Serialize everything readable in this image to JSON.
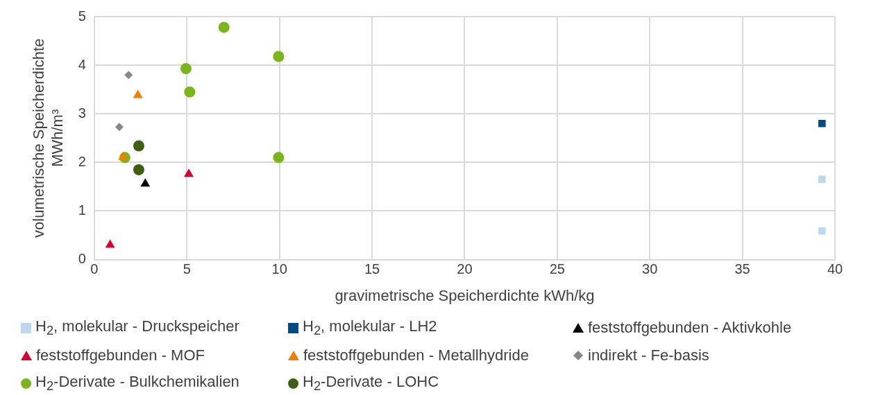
{
  "chart_data": {
    "type": "scatter",
    "xlabel": "gravimetrische Speicherdichte kWh/kg",
    "ylabel": "volumetrische Speicherdichte MWh/m³",
    "xlim": [
      0,
      40
    ],
    "xticks": [
      0,
      5,
      10,
      15,
      20,
      25,
      30,
      35,
      40
    ],
    "ylim": [
      0,
      5
    ],
    "yticks": [
      0,
      1,
      2,
      3,
      4,
      5
    ],
    "grid": true,
    "legend": "bottom",
    "series": [
      {
        "name": "H$_{2}$, molekular - Druckspeicher",
        "color": "#bdd7ee",
        "marker": "square",
        "x": [
          39.3,
          39.3
        ],
        "values": [
          1.65,
          0.59
        ]
      },
      {
        "name": "H$_{2}$, molekular - LH2",
        "color": "#004b87",
        "marker": "square",
        "x": [
          39.3
        ],
        "values": [
          2.8
        ]
      },
      {
        "name": "feststoffgebunden - Aktivkohle",
        "color": "#000000",
        "marker": "triangle",
        "x": [
          2.75
        ],
        "values": [
          1.56
        ]
      },
      {
        "name": "feststoffgebunden - MOF",
        "color": "#d50032",
        "marker": "triangle",
        "x": [
          0.85,
          5.1
        ],
        "values": [
          0.3,
          1.76
        ]
      },
      {
        "name": "feststoffgebunden - Metallhydride",
        "color": "#f07d00",
        "marker": "triangle",
        "x": [
          1.55,
          2.35
        ],
        "values": [
          2.11,
          3.38
        ]
      },
      {
        "name": "indirekt - Fe-basis",
        "color": "#878787",
        "marker": "diamond",
        "x": [
          1.35,
          1.85
        ],
        "values": [
          2.73,
          3.8
        ]
      },
      {
        "name": "H$_{2}$-Derivate - Bulkchemikalien",
        "color": "#7ab51d",
        "marker": "circle",
        "x": [
          1.65,
          4.95,
          5.15,
          7.0,
          9.95,
          9.95
        ],
        "values": [
          2.1,
          3.93,
          3.45,
          4.78,
          4.18,
          2.1
        ]
      },
      {
        "name": "H$_{2}$-Derivate - LOHC",
        "color": "#3e5f12",
        "marker": "circle",
        "x": [
          2.4,
          2.4
        ],
        "values": [
          2.34,
          1.85
        ]
      }
    ]
  }
}
